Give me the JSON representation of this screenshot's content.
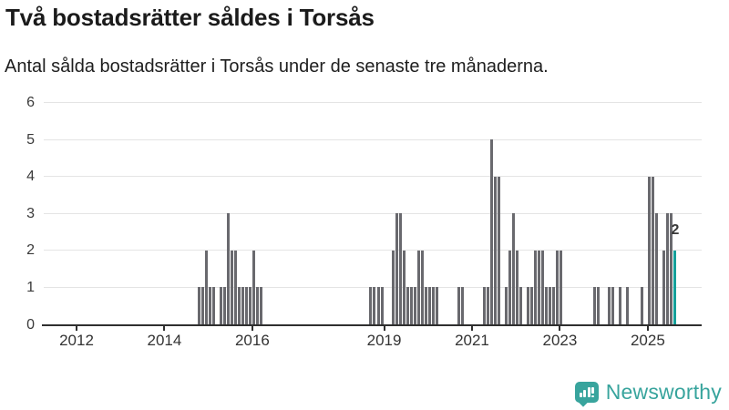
{
  "title": "Två bostadsrätter såldes i Torsås",
  "subtitle": "Antal sålda bostadsrätter i Torsås under de senaste tre månaderna.",
  "colors": {
    "bar": "#69696e",
    "highlight": "#14a09a",
    "grid": "#e4e4e4",
    "axis": "#2f2f2f",
    "text": "#1b1b1b",
    "tick_text": "#3a3a3a",
    "logo": "#38a49d"
  },
  "chart_data": {
    "type": "bar",
    "title": "Två bostadsrätter såldes i Torsås",
    "subtitle": "Antal sålda bostadsrätter i Torsås under de senaste tre månaderna.",
    "x_unit": "month",
    "x_range": [
      "2011-04",
      "2026-03"
    ],
    "ylim": [
      0,
      6
    ],
    "yticks": [
      0,
      1,
      2,
      3,
      4,
      5,
      6
    ],
    "xticks": [
      "2012",
      "2014",
      "2016",
      "2019",
      "2021",
      "2023",
      "2025"
    ],
    "grid": true,
    "values": [
      [
        "2014-10",
        1
      ],
      [
        "2014-11",
        1
      ],
      [
        "2014-12",
        2
      ],
      [
        "2015-01",
        1
      ],
      [
        "2015-02",
        1
      ],
      [
        "2015-04",
        1
      ],
      [
        "2015-05",
        1
      ],
      [
        "2015-06",
        3
      ],
      [
        "2015-07",
        2
      ],
      [
        "2015-08",
        2
      ],
      [
        "2015-09",
        1
      ],
      [
        "2015-10",
        1
      ],
      [
        "2015-11",
        1
      ],
      [
        "2015-12",
        1
      ],
      [
        "2016-01",
        2
      ],
      [
        "2016-02",
        1
      ],
      [
        "2016-03",
        1
      ],
      [
        "2018-09",
        1
      ],
      [
        "2018-10",
        1
      ],
      [
        "2018-11",
        1
      ],
      [
        "2018-12",
        1
      ],
      [
        "2019-03",
        2
      ],
      [
        "2019-04",
        3
      ],
      [
        "2019-05",
        3
      ],
      [
        "2019-06",
        2
      ],
      [
        "2019-07",
        1
      ],
      [
        "2019-08",
        1
      ],
      [
        "2019-09",
        1
      ],
      [
        "2019-10",
        2
      ],
      [
        "2019-11",
        2
      ],
      [
        "2019-12",
        1
      ],
      [
        "2020-01",
        1
      ],
      [
        "2020-02",
        1
      ],
      [
        "2020-03",
        1
      ],
      [
        "2020-09",
        1
      ],
      [
        "2020-10",
        1
      ],
      [
        "2021-04",
        1
      ],
      [
        "2021-05",
        1
      ],
      [
        "2021-06",
        5
      ],
      [
        "2021-07",
        4
      ],
      [
        "2021-08",
        4
      ],
      [
        "2021-10",
        1
      ],
      [
        "2021-11",
        2
      ],
      [
        "2021-12",
        3
      ],
      [
        "2022-01",
        2
      ],
      [
        "2022-02",
        1
      ],
      [
        "2022-04",
        1
      ],
      [
        "2022-05",
        1
      ],
      [
        "2022-06",
        2
      ],
      [
        "2022-07",
        2
      ],
      [
        "2022-08",
        2
      ],
      [
        "2022-09",
        1
      ],
      [
        "2022-10",
        1
      ],
      [
        "2022-11",
        1
      ],
      [
        "2022-12",
        2
      ],
      [
        "2023-01",
        2
      ],
      [
        "2023-10",
        1
      ],
      [
        "2023-11",
        1
      ],
      [
        "2024-02",
        1
      ],
      [
        "2024-03",
        1
      ],
      [
        "2024-05",
        1
      ],
      [
        "2024-07",
        1
      ],
      [
        "2024-11",
        1
      ],
      [
        "2025-01",
        4
      ],
      [
        "2025-02",
        4
      ],
      [
        "2025-03",
        3
      ],
      [
        "2025-05",
        2
      ],
      [
        "2025-06",
        3
      ],
      [
        "2025-07",
        3
      ],
      [
        "2025-08",
        2
      ]
    ],
    "highlight_month": "2025-08",
    "annotation": {
      "text": "2",
      "month": "2025-08"
    },
    "legend": null
  },
  "logo": {
    "text": "Newsworthy"
  }
}
